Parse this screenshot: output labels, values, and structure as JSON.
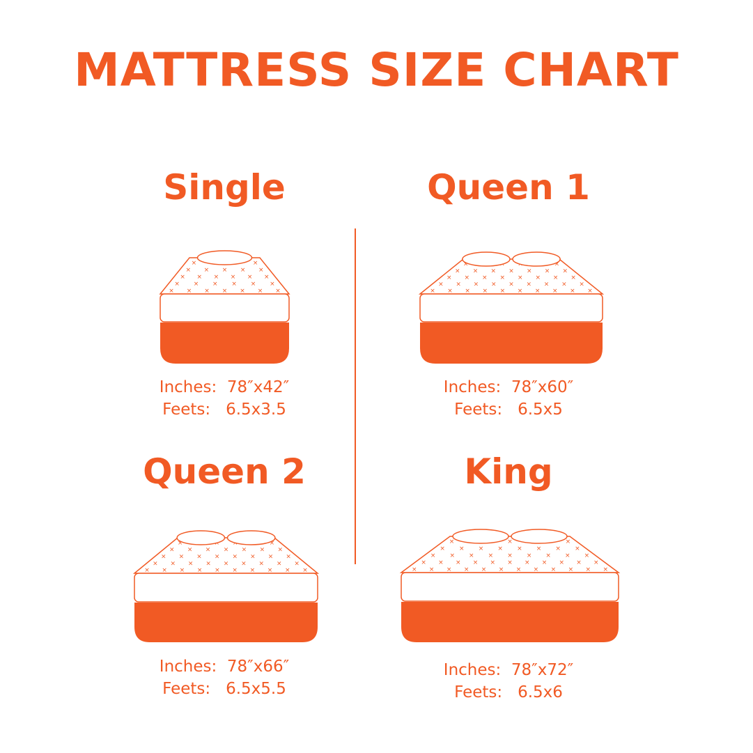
{
  "title": "MATTRESS SIZE CHART",
  "accent_color": "#f15a24",
  "sizes": [
    {
      "name": "Single",
      "inches_label": "Inches:",
      "inches": "78″x42″",
      "feet_label": "Feets:",
      "feet": "6.5x3.5",
      "pillows": 1
    },
    {
      "name": "Queen 1",
      "inches_label": "Inches:",
      "inches": "78″x60″",
      "feet_label": "Feets:",
      "feet": "6.5x5",
      "pillows": 2
    },
    {
      "name": "Queen 2",
      "inches_label": "Inches:",
      "inches": "78″x66″",
      "feet_label": "Feets:",
      "feet": "6.5x5.5",
      "pillows": 2
    },
    {
      "name": "King",
      "inches_label": "Inches:",
      "inches": "78″x72″",
      "feet_label": "Feets:",
      "feet": "6.5x6",
      "pillows": 2
    }
  ]
}
